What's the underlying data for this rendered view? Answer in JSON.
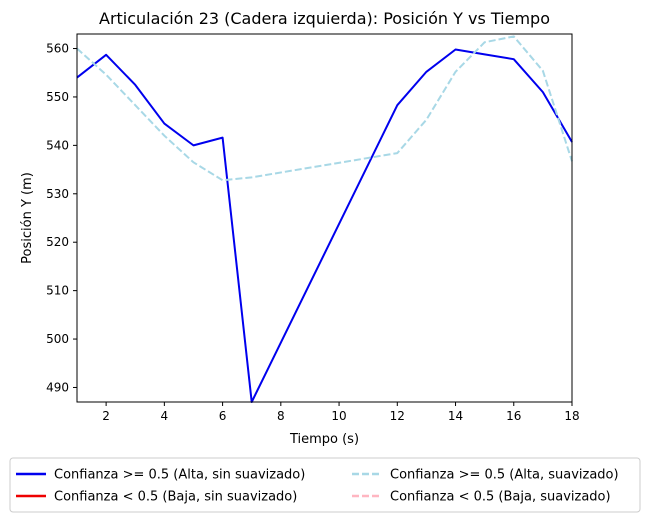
{
  "chart_data": {
    "type": "line",
    "title": "Articulación 23 (Cadera izquierda): Posición Y vs Tiempo",
    "xlabel": "Tiempo (s)",
    "ylabel": "Posición Y (m)",
    "xlim": [
      1,
      18
    ],
    "ylim": [
      487,
      563
    ],
    "xticks": [
      2,
      4,
      6,
      8,
      10,
      12,
      14,
      16,
      18
    ],
    "yticks": [
      490,
      500,
      510,
      520,
      530,
      540,
      550,
      560
    ],
    "grid": false,
    "legend_position": "bottom-outside",
    "series": [
      {
        "name": "Confianza >= 0.5 (Alta, sin suavizado)",
        "color": "#0000ee",
        "style": "solid",
        "x": [
          1,
          2,
          3,
          4,
          5,
          6,
          7,
          12,
          13,
          14,
          15,
          16,
          17,
          18
        ],
        "y": [
          554,
          558.7,
          552.5,
          544.5,
          540,
          541.6,
          487,
          548.3,
          555.2,
          559.8,
          558.8,
          557.8,
          551,
          540.7
        ]
      },
      {
        "name": "Confianza < 0.5 (Baja, sin suavizado)",
        "color": "#ee0000",
        "style": "solid",
        "x": [],
        "y": []
      },
      {
        "name": "Confianza >= 0.5 (Alta, suavizado)",
        "color": "#a8d8e6",
        "style": "dashed",
        "x": [
          1,
          2,
          3,
          4,
          5,
          6,
          7,
          12,
          13,
          14,
          15,
          16,
          17,
          18
        ],
        "y": [
          560,
          554.6,
          548.3,
          542,
          536.5,
          532.8,
          533.4,
          538.4,
          545.3,
          555.2,
          561.3,
          562.5,
          555.4,
          536.7
        ]
      },
      {
        "name": "Confianza < 0.5 (Baja, suavizado)",
        "color": "#ffb6c1",
        "style": "dashed",
        "x": [],
        "y": []
      }
    ]
  }
}
